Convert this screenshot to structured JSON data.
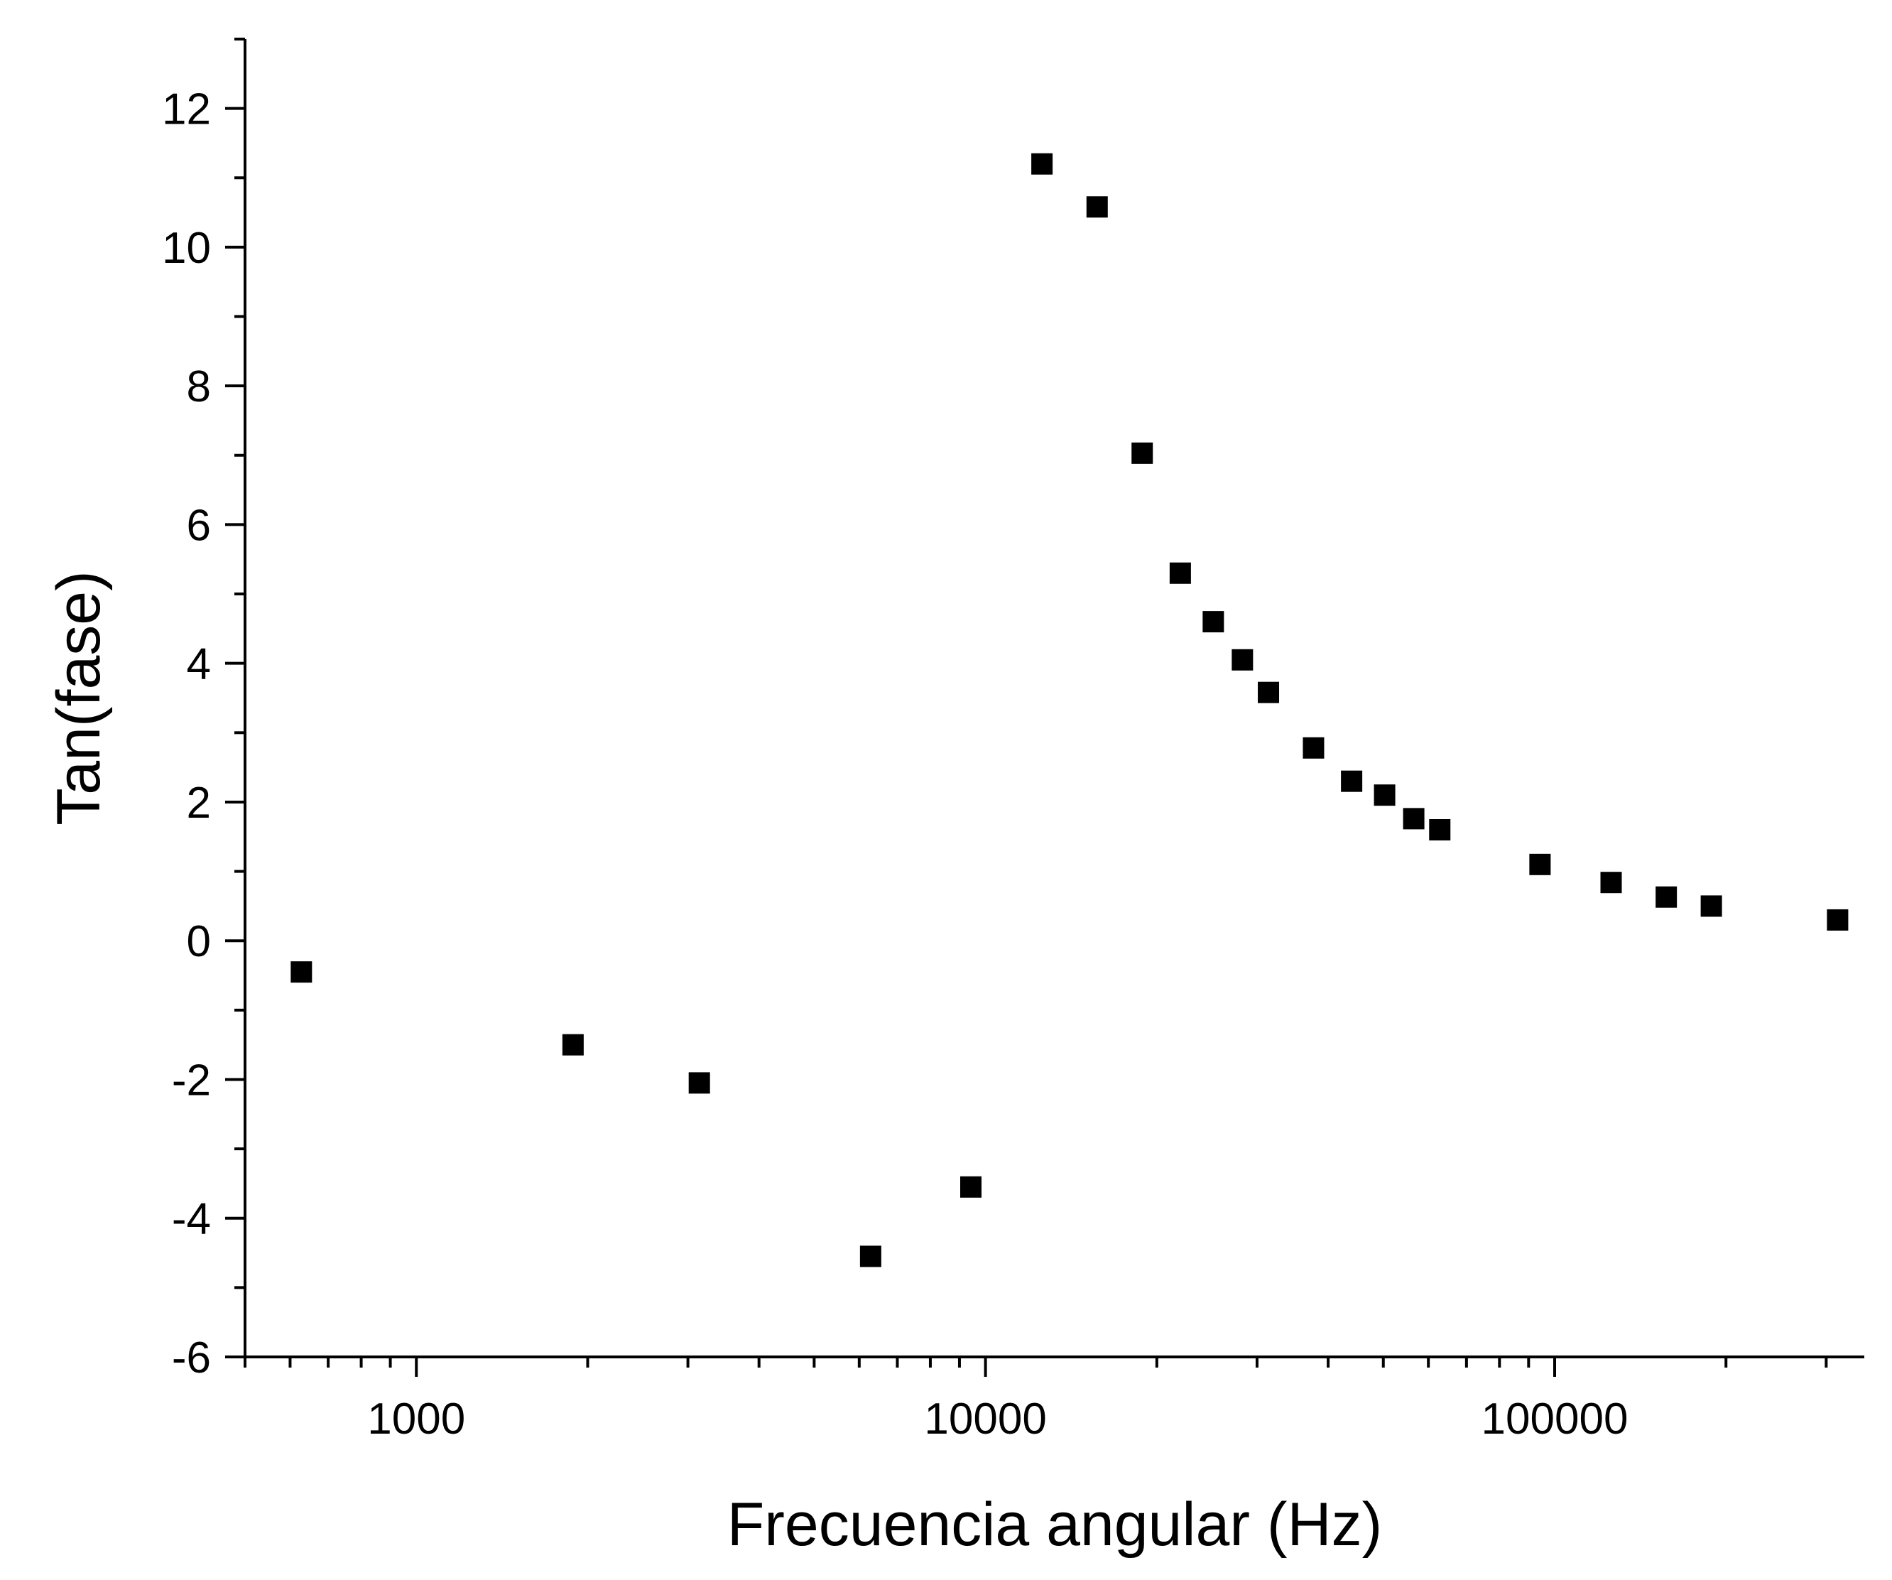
{
  "chart_data": {
    "type": "scatter",
    "title": "",
    "xlabel": "Frecuencia angular (Hz)",
    "ylabel": "Tan(fase)",
    "x_scale": "log",
    "xlim": [
      500,
      350000
    ],
    "ylim": [
      -6,
      13
    ],
    "x_ticks": [
      {
        "value": 1000,
        "label": "1000"
      },
      {
        "value": 10000,
        "label": "10000"
      },
      {
        "value": 100000,
        "label": "100000"
      }
    ],
    "y_ticks": [
      {
        "value": -6,
        "label": "-6"
      },
      {
        "value": -4,
        "label": "-4"
      },
      {
        "value": -2,
        "label": "-2"
      },
      {
        "value": 0,
        "label": "0"
      },
      {
        "value": 2,
        "label": "2"
      },
      {
        "value": 4,
        "label": "4"
      },
      {
        "value": 6,
        "label": "6"
      },
      {
        "value": 8,
        "label": "8"
      },
      {
        "value": 10,
        "label": "10"
      },
      {
        "value": 12,
        "label": "12"
      }
    ],
    "grid": false,
    "legend": "none",
    "marker": "square",
    "marker_color": "#000000",
    "series": [
      {
        "x": [
          628,
          1885,
          3142,
          6283,
          9425,
          12566,
          15708,
          18850,
          21991,
          25133,
          28274,
          31416,
          37699,
          43982,
          50265,
          56549,
          62832,
          94248,
          125664,
          157080,
          188496,
          314159
        ],
        "y": [
          -0.45,
          -1.5,
          -2.05,
          -4.55,
          -3.55,
          11.2,
          10.58,
          7.03,
          5.3,
          4.6,
          4.05,
          3.58,
          2.78,
          2.3,
          2.1,
          1.76,
          1.6,
          1.1,
          0.84,
          0.63,
          0.5,
          0.3
        ]
      }
    ]
  }
}
